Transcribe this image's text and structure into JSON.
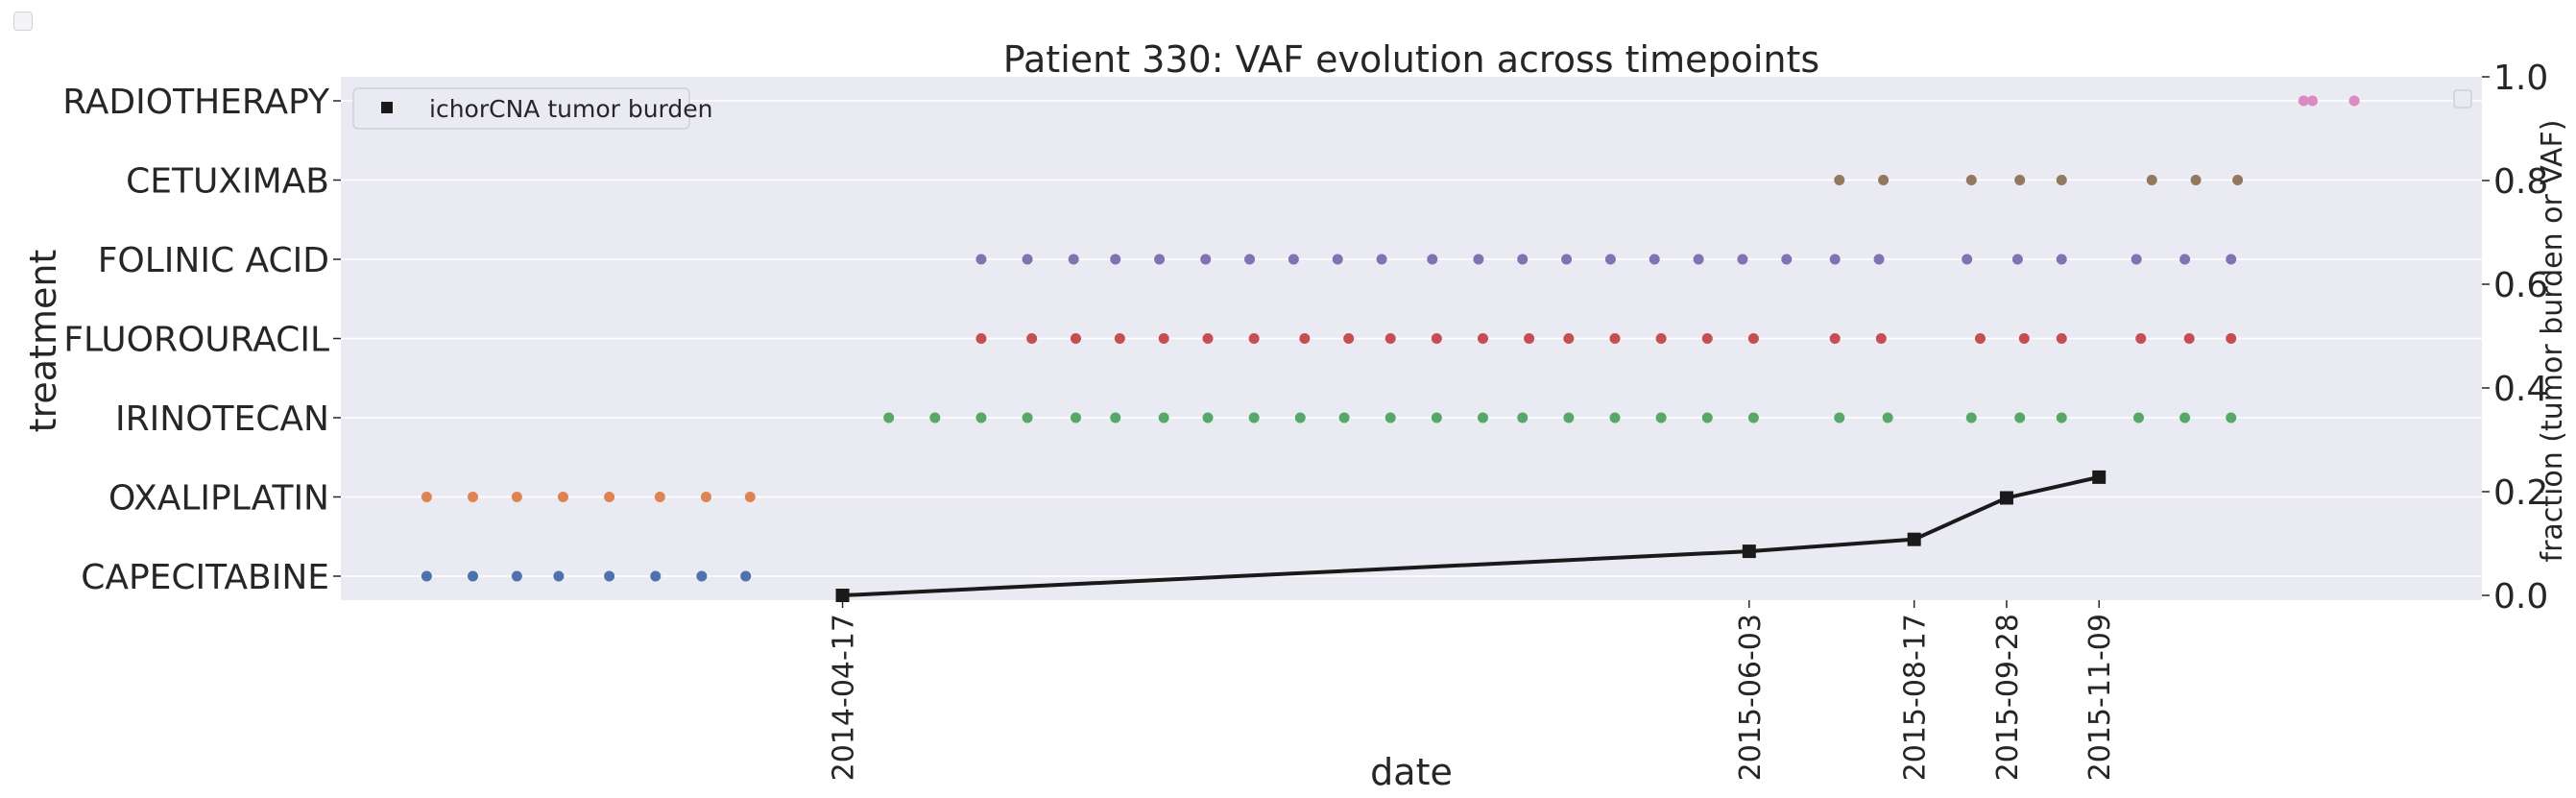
{
  "chart_data": {
    "type": "scatter",
    "title": "Patient 330: VAF evolution across timepoints",
    "xlabel": "date",
    "ylabel_left": "treatment",
    "ylabel_right": "fraction (tumor burden or VAF)",
    "left_categories": [
      "CAPECITABINE",
      "OXALIPLATIN",
      "IRINOTECAN",
      "FLUOROURACIL",
      "FOLINIC ACID",
      "CETUXIMAB",
      "RADIOTHERAPY"
    ],
    "right_ylim": [
      0.0,
      1.0
    ],
    "right_ticks": [
      "0.0",
      "0.2",
      "0.4",
      "0.6",
      "0.8",
      "1.0"
    ],
    "xlim": [
      "2013-09-01",
      "2016-05-01"
    ],
    "x_ticks": [
      "2014-04-17",
      "2015-06-03",
      "2015-08-17",
      "2015-09-28",
      "2015-11-09"
    ],
    "legend": {
      "label": "ichorCNA tumor burden",
      "placement": "top-left"
    },
    "colors": {
      "CAPECITABINE": "#4c72b0",
      "OXALIPLATIN": "#dd8452",
      "IRINOTECAN": "#55a868",
      "FLUOROURACIL": "#c44e52",
      "FOLINIC ACID": "#8172b3",
      "CETUXIMAB": "#937860",
      "RADIOTHERAPY": "#da8bc3",
      "tumor_burden": "#1a1a1a",
      "plot_bg": "#eaeaf2"
    },
    "treatments": [
      {
        "name": "CAPECITABINE",
        "dates": [
          "2013-10-10",
          "2013-10-31",
          "2013-11-20",
          "2013-12-09",
          "2014-01-01",
          "2014-01-22",
          "2014-02-12",
          "2014-03-04"
        ]
      },
      {
        "name": "OXALIPLATIN",
        "dates": [
          "2013-10-10",
          "2013-10-31",
          "2013-11-20",
          "2013-12-11",
          "2014-01-01",
          "2014-01-24",
          "2014-02-14",
          "2014-03-06"
        ]
      },
      {
        "name": "IRINOTECAN",
        "dates": [
          "2014-05-08",
          "2014-05-29",
          "2014-06-19",
          "2014-07-10",
          "2014-08-01",
          "2014-08-19",
          "2014-09-10",
          "2014-09-30",
          "2014-10-21",
          "2014-11-11",
          "2014-12-01",
          "2014-12-22",
          "2015-01-12",
          "2015-02-02",
          "2015-02-20",
          "2015-03-13",
          "2015-04-03",
          "2015-04-24",
          "2015-05-15",
          "2015-06-05",
          "2015-07-14",
          "2015-08-05",
          "2015-09-12",
          "2015-10-04",
          "2015-10-23",
          "2015-11-27",
          "2015-12-18",
          "2016-01-08"
        ]
      },
      {
        "name": "FLUOROURACIL",
        "dates": [
          "2014-06-19",
          "2014-07-12",
          "2014-08-01",
          "2014-08-21",
          "2014-09-10",
          "2014-09-30",
          "2014-10-21",
          "2014-11-13",
          "2014-12-03",
          "2014-12-22",
          "2015-01-12",
          "2015-02-02",
          "2015-02-23",
          "2015-03-13",
          "2015-04-03",
          "2015-04-24",
          "2015-05-15",
          "2015-06-05",
          "2015-07-12",
          "2015-08-02",
          "2015-09-16",
          "2015-10-06",
          "2015-10-23",
          "2015-11-28",
          "2015-12-20",
          "2016-01-08"
        ]
      },
      {
        "name": "FOLINIC ACID",
        "dates": [
          "2014-06-19",
          "2014-07-10",
          "2014-07-31",
          "2014-08-19",
          "2014-09-08",
          "2014-09-29",
          "2014-10-19",
          "2014-11-08",
          "2014-11-28",
          "2014-12-18",
          "2015-01-10",
          "2015-01-31",
          "2015-02-20",
          "2015-03-12",
          "2015-04-01",
          "2015-04-21",
          "2015-05-11",
          "2015-05-31",
          "2015-06-20",
          "2015-07-12",
          "2015-08-01",
          "2015-09-10",
          "2015-10-03",
          "2015-10-23",
          "2015-11-26",
          "2015-12-18",
          "2016-01-08"
        ]
      },
      {
        "name": "CETUXIMAB",
        "dates": [
          "2015-07-14",
          "2015-08-03",
          "2015-09-12",
          "2015-10-04",
          "2015-10-23",
          "2015-12-03",
          "2015-12-23",
          "2016-01-11"
        ]
      },
      {
        "name": "RADIOTHERAPY",
        "dates": [
          "2016-02-10",
          "2016-02-14",
          "2016-03-04"
        ]
      }
    ],
    "series": [
      {
        "name": "ichorCNA tumor burden",
        "type": "line",
        "x": [
          "2014-04-17",
          "2015-06-03",
          "2015-08-17",
          "2015-09-28",
          "2015-11-09"
        ],
        "y": [
          0.0,
          0.085,
          0.108,
          0.188,
          0.228
        ]
      }
    ]
  }
}
